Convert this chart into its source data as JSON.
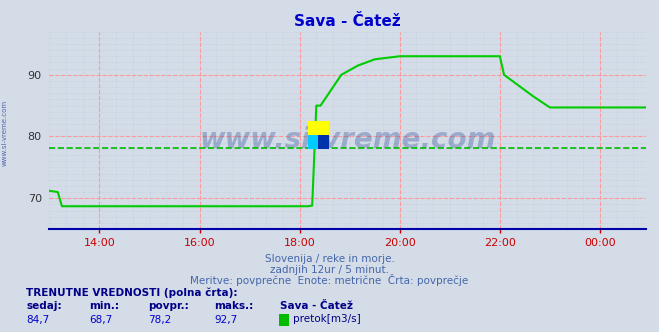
{
  "title": "Sava - Čatež",
  "title_color": "#0000cc",
  "background_color": "#d4dce8",
  "plot_bg_color": "#d4dce8",
  "line_color": "#00cc00",
  "line_width": 1.5,
  "avg_line_color": "#00bb00",
  "avg_line_value": 78.2,
  "ylim": [
    65,
    97
  ],
  "yticks": [
    70,
    80,
    90
  ],
  "xlim": [
    0,
    143
  ],
  "xtick_labels": [
    "14:00",
    "16:00",
    "18:00",
    "20:00",
    "22:00",
    "00:00"
  ],
  "xtick_positions": [
    12,
    36,
    60,
    84,
    108,
    132
  ],
  "watermark": "www.si-vreme.com",
  "watermark_color": "#1a3a8a",
  "subtitle1": "Slovenija / reke in morje.",
  "subtitle2": "zadnjih 12ur / 5 minut.",
  "subtitle3": "Meritve: povprečne  Enote: metrične  Črta: povprečje",
  "label_bold": "TRENUTNE VREDNOSTI (polna črta):",
  "col_headers": [
    "sedaj:",
    "min.:",
    "povpr.:",
    "maks.:",
    "Sava - Čatež"
  ],
  "col_values": [
    "84,7",
    "68,7",
    "78,2",
    "92,7"
  ],
  "legend_label": "pretok[m3/s]",
  "legend_color": "#00bb00",
  "axis_color": "#0000aa",
  "left_label": "www.si-vreme.com",
  "left_label_color": "#5566aa",
  "x_pts": [
    0,
    2,
    3,
    14,
    15,
    62,
    63,
    64,
    65,
    70,
    74,
    78,
    84,
    96,
    108,
    109,
    116,
    120,
    132,
    143
  ],
  "y_pts": [
    71.2,
    71.0,
    68.7,
    68.7,
    68.7,
    68.7,
    68.8,
    85.0,
    85.0,
    90.0,
    91.5,
    92.5,
    93.0,
    93.0,
    93.0,
    90.0,
    86.5,
    84.7,
    84.7,
    84.7
  ]
}
